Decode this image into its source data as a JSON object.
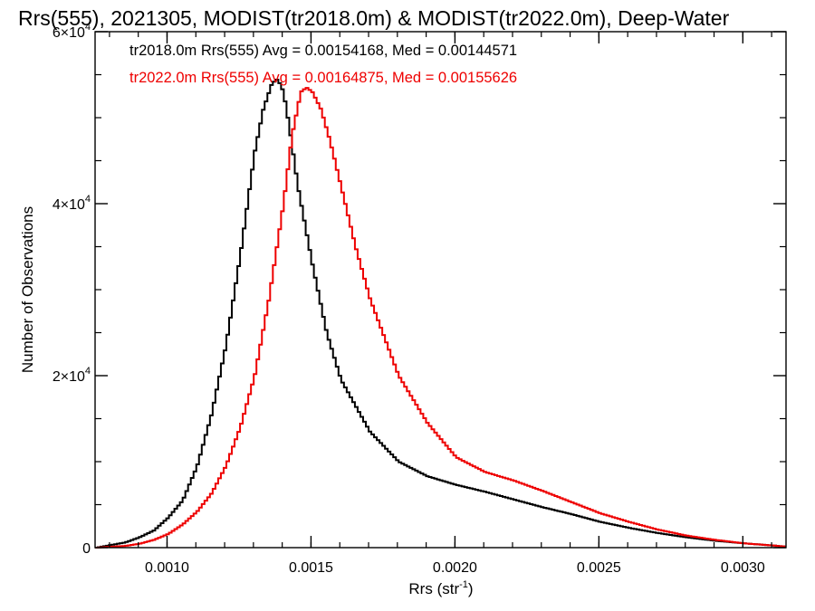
{
  "chart_data": {
    "type": "line",
    "title": "Rrs(555), 2021305, MODIST(tr2018.0m) & MODIST(tr2022.0m), Deep-Water",
    "xlabel": "Rrs (str",
    "xlabel_sup": "-1",
    "xlabel_close": ")",
    "ylabel": "Number of Observations",
    "xlim": [
      0.00075,
      0.00315
    ],
    "ylim": [
      0,
      60000
    ],
    "x_ticks": [
      {
        "value": 0.001,
        "label": "0.0010"
      },
      {
        "value": 0.0015,
        "label": "0.0015"
      },
      {
        "value": 0.002,
        "label": "0.0020"
      },
      {
        "value": 0.0025,
        "label": "0.0025"
      },
      {
        "value": 0.003,
        "label": "0.0030"
      }
    ],
    "y_ticks": [
      {
        "value": 0,
        "base": "0",
        "sup": ""
      },
      {
        "value": 20000,
        "base": "2×10",
        "sup": "4"
      },
      {
        "value": 40000,
        "base": "4×10",
        "sup": "4"
      },
      {
        "value": 60000,
        "base": "6×10",
        "sup": "4"
      }
    ],
    "grid": false,
    "legend_position": "top-left",
    "series": [
      {
        "name": "tr2018.0m Rrs(555) Avg = 0.00154168, Med = 0.00144571",
        "color": "#000000",
        "x": [
          0.00075,
          0.00085,
          0.0009,
          0.00095,
          0.001,
          0.00105,
          0.0011,
          0.00115,
          0.0012,
          0.00125,
          0.0013,
          0.00133,
          0.00136,
          0.00138,
          0.0014,
          0.00142,
          0.00145,
          0.0015,
          0.00155,
          0.0016,
          0.0017,
          0.0018,
          0.0019,
          0.002,
          0.0021,
          0.0022,
          0.0023,
          0.0024,
          0.0025,
          0.0026,
          0.0027,
          0.0028,
          0.0029,
          0.003,
          0.0031,
          0.00315
        ],
        "values": [
          0,
          600,
          1200,
          2000,
          3500,
          5500,
          9500,
          15500,
          23500,
          34000,
          46000,
          51000,
          54000,
          54500,
          53000,
          49000,
          42000,
          33000,
          25000,
          19500,
          13500,
          10000,
          8300,
          7300,
          6500,
          5600,
          4700,
          3900,
          3000,
          2300,
          1700,
          1200,
          800,
          500,
          250,
          100
        ]
      },
      {
        "name": "tr2022.0m Rrs(555) Avg = 0.00164875, Med = 0.00155626",
        "color": "#ee0000",
        "x": [
          0.00075,
          0.00085,
          0.0009,
          0.00095,
          0.001,
          0.00105,
          0.0011,
          0.00115,
          0.0012,
          0.00125,
          0.0013,
          0.00135,
          0.0014,
          0.00143,
          0.00146,
          0.00148,
          0.0015,
          0.00153,
          0.00156,
          0.0016,
          0.00165,
          0.0017,
          0.0018,
          0.0019,
          0.002,
          0.0021,
          0.0022,
          0.0023,
          0.0024,
          0.0025,
          0.0026,
          0.0027,
          0.0028,
          0.0029,
          0.003,
          0.0031,
          0.00315
        ],
        "values": [
          0,
          200,
          450,
          900,
          1600,
          2700,
          4200,
          6300,
          9500,
          14000,
          20000,
          29000,
          40000,
          48000,
          53000,
          53500,
          53000,
          51000,
          47500,
          42000,
          35000,
          29000,
          20000,
          14500,
          10500,
          8800,
          7800,
          6600,
          5300,
          4000,
          3000,
          2100,
          1400,
          900,
          500,
          250,
          100
        ]
      }
    ]
  }
}
